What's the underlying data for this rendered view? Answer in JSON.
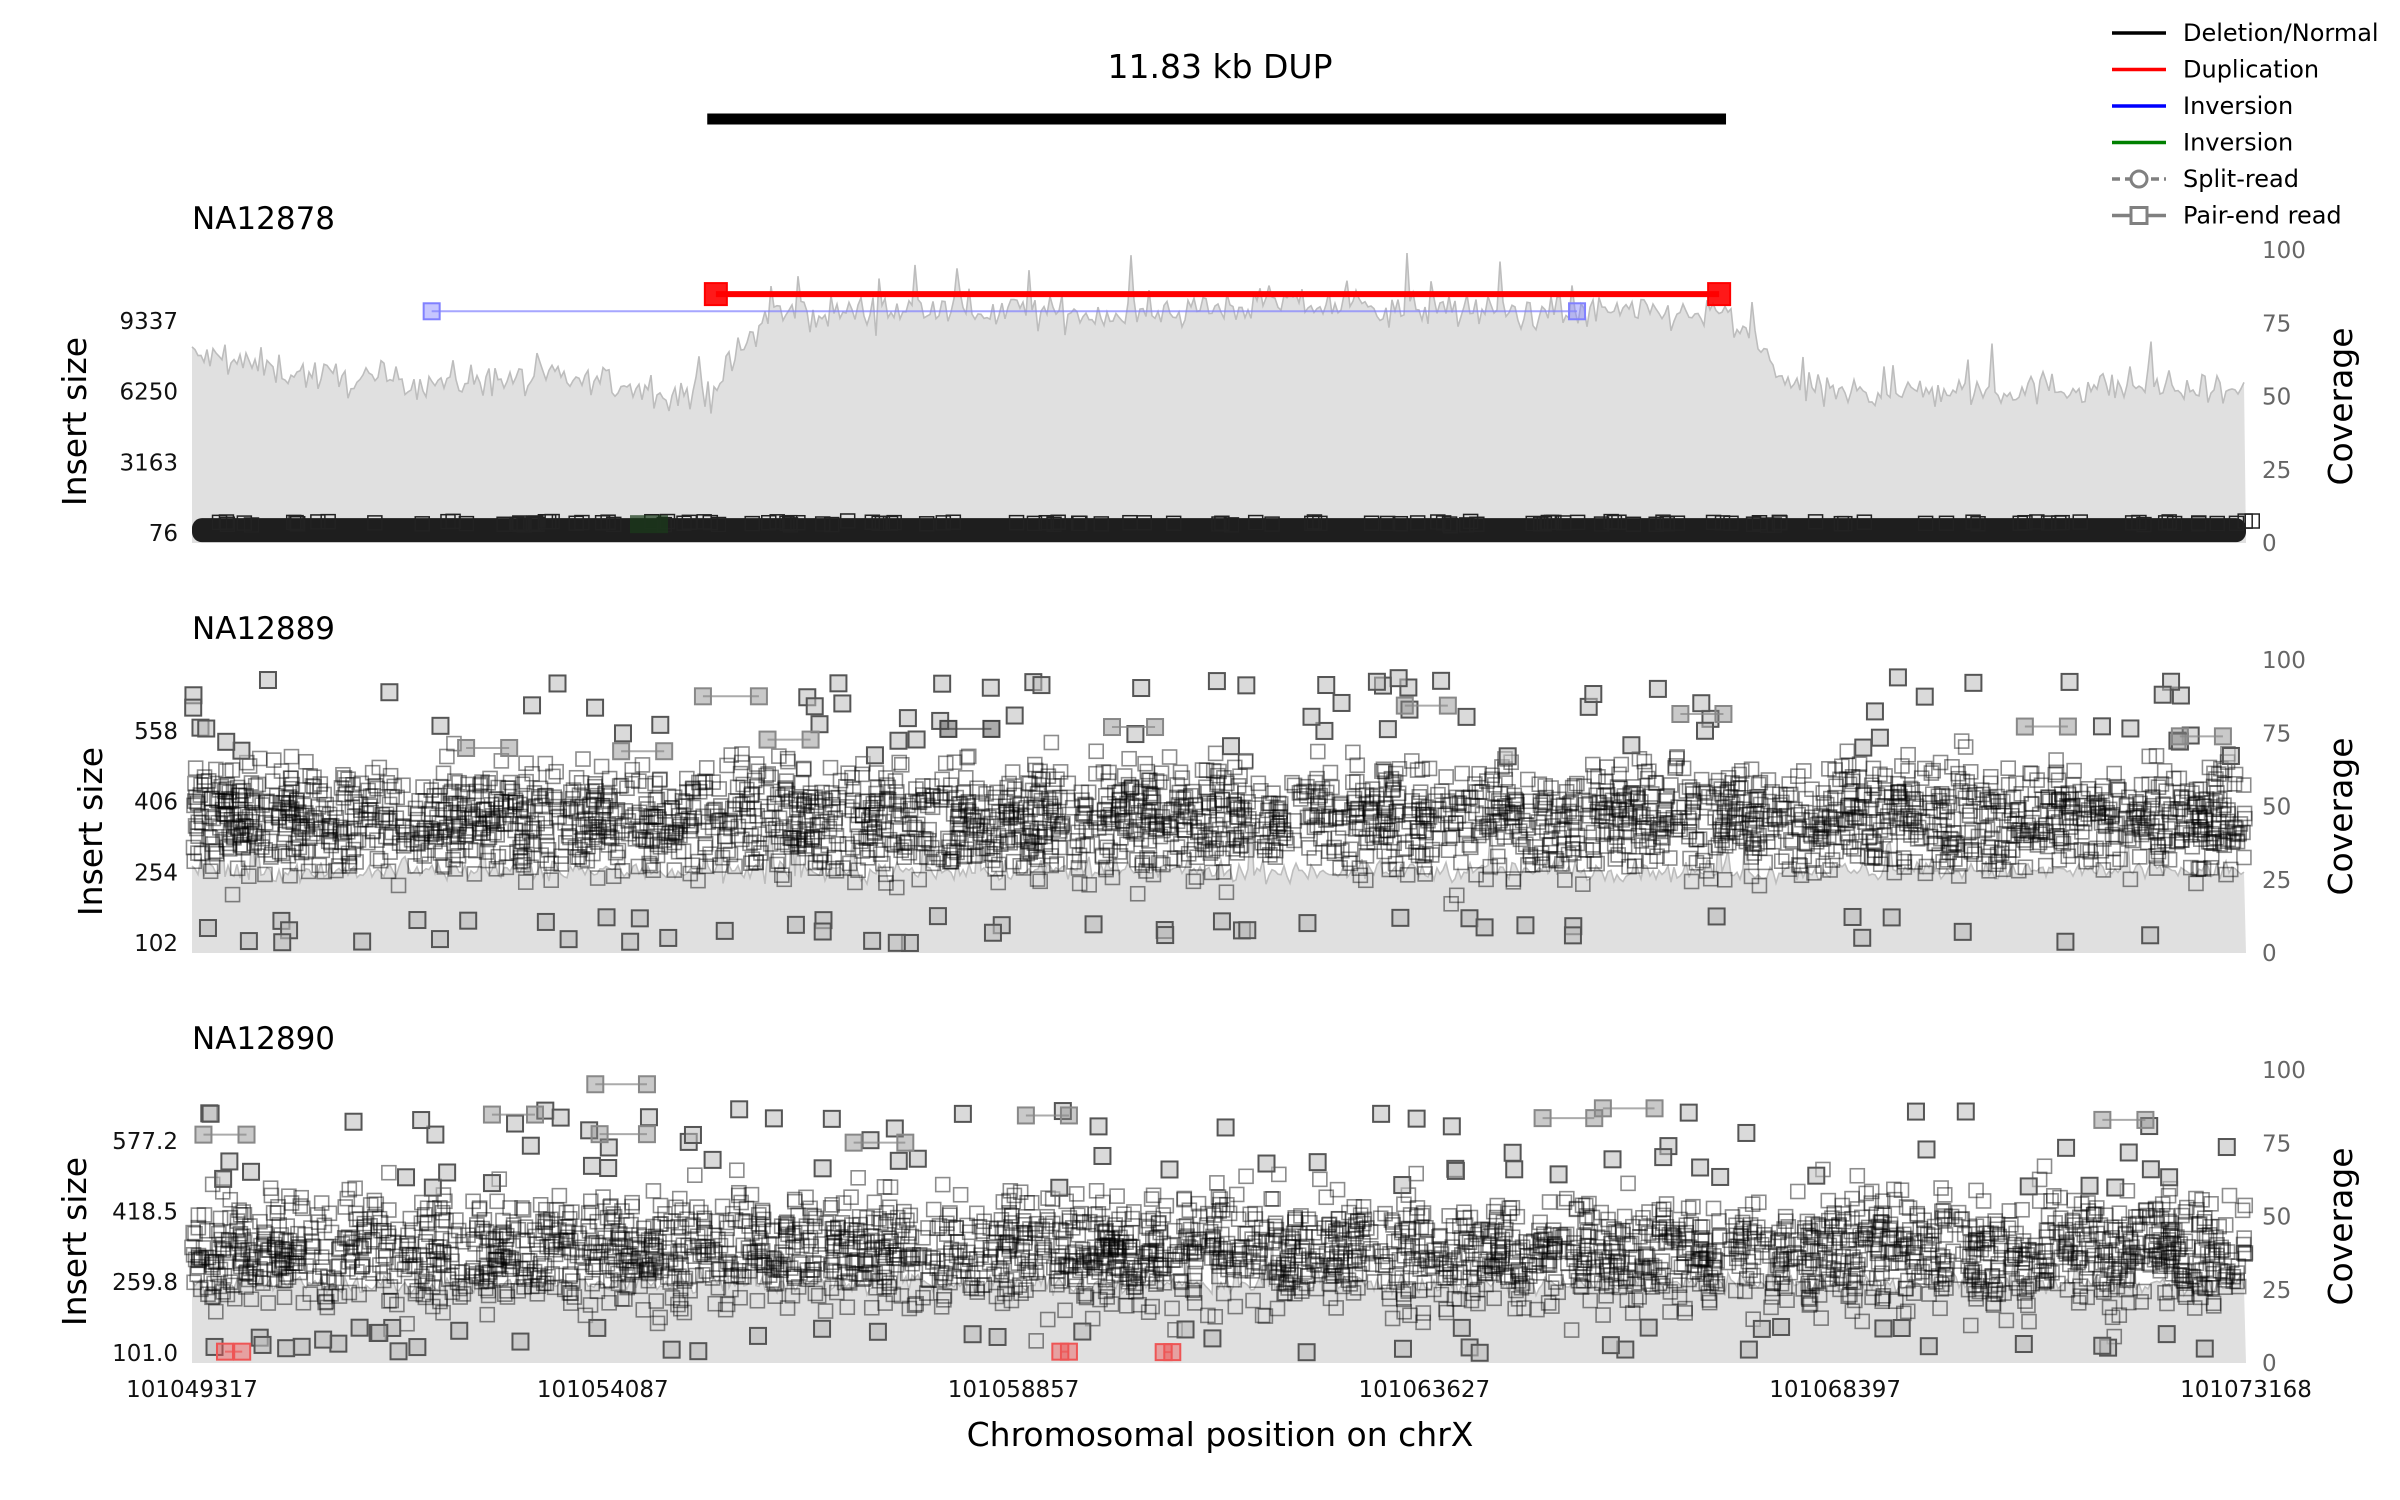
{
  "chart_data": {
    "type": "scatter",
    "title": "11.83 kb DUP",
    "variant": {
      "start": 101055300,
      "end": 101067130
    },
    "xlabel": "Chromosomal position on chrX",
    "xlim": [
      101049317,
      101073168
    ],
    "xticks": [
      "101049317",
      "101054087",
      "101058857",
      "101063627",
      "101068397",
      "101073168"
    ],
    "legend": {
      "position": "top-right",
      "entries": [
        {
          "label": "Deletion/Normal",
          "color": "#000000",
          "marker": "line"
        },
        {
          "label": "Duplication",
          "color": "#ff0000",
          "marker": "line"
        },
        {
          "label": "Inversion",
          "color": "#0000ff",
          "marker": "line"
        },
        {
          "label": "Inversion",
          "color": "#008000",
          "marker": "line"
        },
        {
          "label": "Split-read",
          "color": "#808080",
          "marker": "circle-dashed"
        },
        {
          "label": "Pair-end read",
          "color": "#808080",
          "marker": "square"
        }
      ]
    },
    "panels": [
      {
        "sample": "NA12878",
        "ylabel": "Insert size",
        "y2label": "Coverage",
        "yticks": [
          "76",
          "3163",
          "6250",
          "9337"
        ],
        "ylim": [
          76,
          12424
        ],
        "coverage_ticks": [
          "0",
          "25",
          "50",
          "75",
          "100"
        ],
        "coverage_lim": [
          0,
          100
        ],
        "coverage_profile": {
          "x": [
            101049317,
            101051000,
            101052000,
            101053000,
            101054000,
            101055300,
            101056000,
            101058000,
            101060000,
            101062000,
            101063000,
            101065000,
            101067130,
            101068000,
            101070000,
            101072000,
            101073168
          ],
          "y": [
            64,
            56,
            55,
            56,
            55,
            50,
            78,
            80,
            78,
            82,
            80,
            79,
            78,
            51,
            52,
            54,
            50
          ]
        },
        "pairs": [
          {
            "start": 101055400,
            "end": 101067050,
            "insert": 10500,
            "color": "#ff0000"
          },
          {
            "start": 101052100,
            "end": 101065400,
            "insert": 9750,
            "color": "#8080ff"
          }
        ],
        "normal_band": {
          "insert_center": 200,
          "insert_spread": 200
        }
      },
      {
        "sample": "NA12889",
        "ylabel": "Insert size",
        "y2label": "Coverage",
        "yticks": [
          "102",
          "254",
          "406",
          "558"
        ],
        "ylim": [
          102,
          710
        ],
        "coverage_ticks": [
          "0",
          "25",
          "50",
          "75",
          "100"
        ],
        "coverage_lim": [
          0,
          100
        ],
        "coverage_profile": {
          "x": [
            101049317,
            101073168
          ],
          "y": [
            28,
            28
          ]
        },
        "pairs": [
          {
            "start": 101055250,
            "end": 101055900,
            "insert": 632,
            "color": "#888888"
          },
          {
            "start": 101056000,
            "end": 101056500,
            "insert": 539,
            "color": "#888888"
          },
          {
            "start": 101058100,
            "end": 101058600,
            "insert": 562,
            "color": "#444444"
          },
          {
            "start": 101060000,
            "end": 101060500,
            "insert": 566,
            "color": "#888888"
          },
          {
            "start": 101063400,
            "end": 101063900,
            "insert": 612,
            "color": "#888888"
          },
          {
            "start": 101066600,
            "end": 101067100,
            "insert": 594,
            "color": "#888888"
          },
          {
            "start": 101070600,
            "end": 101071100,
            "insert": 567,
            "color": "#888888"
          },
          {
            "start": 101054300,
            "end": 101054800,
            "insert": 514,
            "color": "#888888"
          },
          {
            "start": 101052500,
            "end": 101053000,
            "insert": 521,
            "color": "#888888"
          },
          {
            "start": 101072400,
            "end": 101072900,
            "insert": 546,
            "color": "#888888"
          }
        ],
        "normal_band": {
          "insert_center": 370,
          "insert_spread": 190
        }
      },
      {
        "sample": "NA12890",
        "ylabel": "Insert size",
        "y2label": "Coverage",
        "yticks": [
          "101.0",
          "259.8",
          "418.5",
          "577.2"
        ],
        "ylim": [
          101,
          736
        ],
        "coverage_ticks": [
          "0",
          "25",
          "50",
          "75",
          "100"
        ],
        "coverage_lim": [
          0,
          100
        ],
        "coverage_profile": {
          "x": [
            101049317,
            101073168
          ],
          "y": [
            27,
            27
          ]
        },
        "pairs": [
          {
            "start": 101049450,
            "end": 101049950,
            "insert": 591,
            "color": "#888888"
          },
          {
            "start": 101054000,
            "end": 101054600,
            "insert": 704,
            "color": "#888888"
          },
          {
            "start": 101054050,
            "end": 101054600,
            "insert": 592,
            "color": "#888888"
          },
          {
            "start": 101052800,
            "end": 101053300,
            "insert": 636,
            "color": "#888888"
          },
          {
            "start": 101059000,
            "end": 101059500,
            "insert": 634,
            "color": "#888888"
          },
          {
            "start": 101057000,
            "end": 101057600,
            "insert": 573,
            "color": "#888888"
          },
          {
            "start": 101065000,
            "end": 101065600,
            "insert": 628,
            "color": "#888888"
          },
          {
            "start": 101065700,
            "end": 101066300,
            "insert": 650,
            "color": "#888888"
          },
          {
            "start": 101071500,
            "end": 101072000,
            "insert": 624,
            "color": "#888888"
          },
          {
            "start": 101049700,
            "end": 101049900,
            "insert": 104,
            "color": "#ee5555"
          },
          {
            "start": 101059400,
            "end": 101059500,
            "insert": 104,
            "color": "#ee5555"
          },
          {
            "start": 101060600,
            "end": 101060700,
            "insert": 103,
            "color": "#ee5555"
          }
        ],
        "normal_band": {
          "insert_center": 330,
          "insert_spread": 200
        }
      }
    ]
  }
}
